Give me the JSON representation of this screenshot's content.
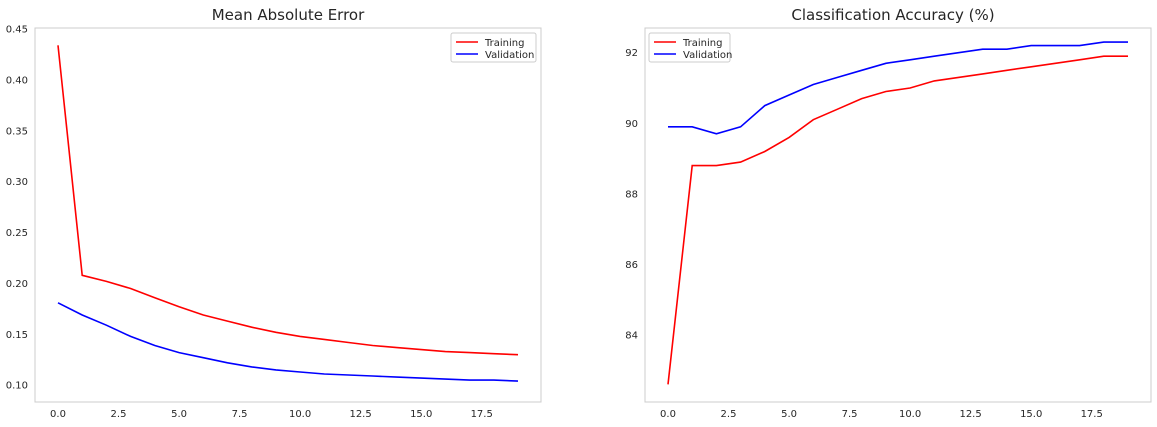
{
  "chart_data": [
    {
      "type": "line",
      "title": "Mean Absolute Error",
      "xlabel": "",
      "ylabel": "",
      "xlim": [
        -0.95,
        19.95
      ],
      "ylim": [
        0.0835,
        0.451
      ],
      "xticks": [
        0.0,
        2.5,
        5.0,
        7.5,
        10.0,
        12.5,
        15.0,
        17.5
      ],
      "xtick_labels": [
        "0.0",
        "2.5",
        "5.0",
        "7.5",
        "10.0",
        "12.5",
        "15.0",
        "17.5"
      ],
      "yticks": [
        0.1,
        0.15,
        0.2,
        0.25,
        0.3,
        0.35,
        0.4,
        0.45
      ],
      "ytick_labels": [
        "0.10",
        "0.15",
        "0.20",
        "0.25",
        "0.30",
        "0.35",
        "0.40",
        "0.45"
      ],
      "grid": false,
      "legend_position": "top-right",
      "x": [
        0,
        1,
        2,
        3,
        4,
        5,
        6,
        7,
        8,
        9,
        10,
        11,
        12,
        13,
        14,
        15,
        16,
        17,
        18,
        19
      ],
      "series": [
        {
          "name": "Training",
          "color": "#ff0000",
          "values": [
            0.434,
            0.208,
            0.202,
            0.195,
            0.186,
            0.177,
            0.169,
            0.163,
            0.157,
            0.152,
            0.148,
            0.145,
            0.142,
            0.139,
            0.137,
            0.135,
            0.133,
            0.132,
            0.131,
            0.13
          ]
        },
        {
          "name": "Validation",
          "color": "#0000ff",
          "values": [
            0.181,
            0.169,
            0.159,
            0.148,
            0.139,
            0.132,
            0.127,
            0.122,
            0.118,
            0.115,
            0.113,
            0.111,
            0.11,
            0.109,
            0.108,
            0.107,
            0.106,
            0.105,
            0.105,
            0.104
          ]
        }
      ]
    },
    {
      "type": "line",
      "title": "Classification Accuracy (%)",
      "xlabel": "",
      "ylabel": "",
      "xlim": [
        -0.95,
        19.95
      ],
      "ylim": [
        82.1,
        92.7
      ],
      "xticks": [
        0.0,
        2.5,
        5.0,
        7.5,
        10.0,
        12.5,
        15.0,
        17.5
      ],
      "xtick_labels": [
        "0.0",
        "2.5",
        "5.0",
        "7.5",
        "10.0",
        "12.5",
        "15.0",
        "17.5"
      ],
      "yticks": [
        84,
        86,
        88,
        90,
        92
      ],
      "ytick_labels": [
        "84",
        "86",
        "88",
        "90",
        "92"
      ],
      "grid": false,
      "legend_position": "top-left",
      "x": [
        0,
        1,
        2,
        3,
        4,
        5,
        6,
        7,
        8,
        9,
        10,
        11,
        12,
        13,
        14,
        15,
        16,
        17,
        18,
        19
      ],
      "series": [
        {
          "name": "Training",
          "color": "#ff0000",
          "values": [
            82.6,
            88.8,
            88.8,
            88.9,
            89.2,
            89.6,
            90.1,
            90.4,
            90.7,
            90.9,
            91.0,
            91.2,
            91.3,
            91.4,
            91.5,
            91.6,
            91.7,
            91.8,
            91.9,
            91.9
          ]
        },
        {
          "name": "Validation",
          "color": "#0000ff",
          "values": [
            89.9,
            89.9,
            89.7,
            89.9,
            90.5,
            90.8,
            91.1,
            91.3,
            91.5,
            91.7,
            91.8,
            91.9,
            92.0,
            92.1,
            92.1,
            92.2,
            92.2,
            92.2,
            92.3,
            92.3
          ]
        }
      ]
    }
  ]
}
